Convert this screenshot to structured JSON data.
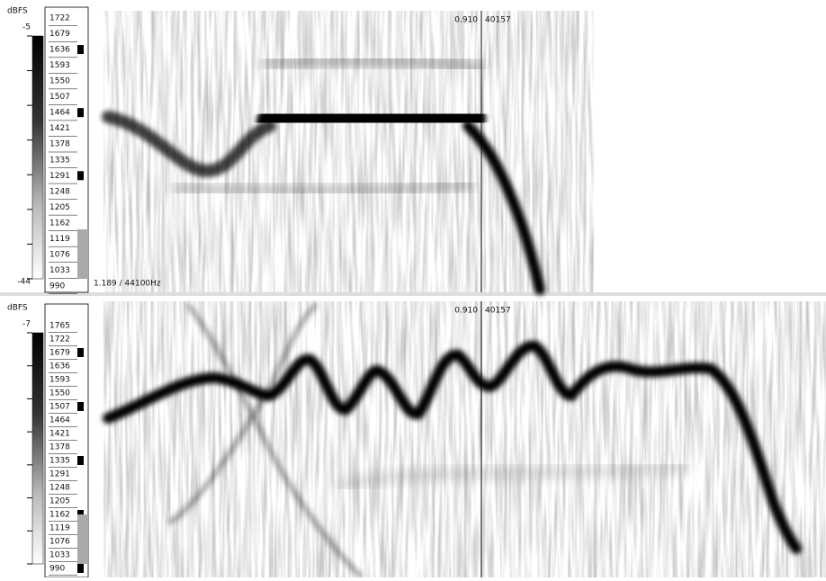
{
  "panes": [
    {
      "scale_unit": "dBFS",
      "scale_max": "-5",
      "scale_min": "-44",
      "freq_labels": [
        "1722",
        "1679",
        "1636",
        "1593",
        "1550",
        "1507",
        "1464",
        "1421",
        "1378",
        "1335",
        "1291",
        "1248",
        "1205",
        "1162",
        "1119",
        "1076",
        "1033",
        "990"
      ],
      "cursor_time": "0.910",
      "cursor_frame": "40157",
      "info": "1.189 / 44100Hz"
    },
    {
      "scale_unit": "dBFS",
      "scale_max": "-7",
      "freq_labels": [
        "1765",
        "1722",
        "1679",
        "1636",
        "1593",
        "1550",
        "1507",
        "1464",
        "1421",
        "1378",
        "1335",
        "1291",
        "1248",
        "1205",
        "1162",
        "1119",
        "1076",
        "1033",
        "990"
      ],
      "cursor_time": "0.910",
      "cursor_frame": "40157"
    }
  ]
}
